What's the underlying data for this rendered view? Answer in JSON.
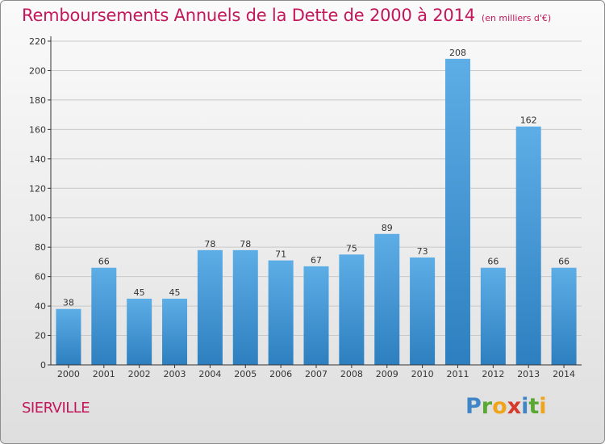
{
  "title": {
    "main": "Remboursements Annuels de la Dette de 2000 à 2014",
    "unit": "(en milliers d'€)"
  },
  "commune": "SIERVILLE",
  "logo": {
    "letters": [
      "P",
      "r",
      "o",
      "x",
      "i",
      "t",
      "i"
    ],
    "colors": [
      "#3f86c9",
      "#58a832",
      "#f0a419",
      "#d63a2a",
      "#3f86c9",
      "#58a832",
      "#f0a419"
    ]
  },
  "chart_data": {
    "type": "bar",
    "title": "Remboursements Annuels de la Dette de 2000 à 2014",
    "xlabel": "",
    "ylabel": "",
    "categories": [
      "2000",
      "2001",
      "2002",
      "2003",
      "2004",
      "2005",
      "2006",
      "2007",
      "2008",
      "2009",
      "2010",
      "2011",
      "2012",
      "2013",
      "2014"
    ],
    "values": [
      38,
      66,
      45,
      45,
      78,
      78,
      71,
      67,
      75,
      89,
      73,
      208,
      66,
      162,
      66
    ],
    "ylim": [
      0,
      220
    ],
    "yticks": [
      0,
      20,
      40,
      60,
      80,
      100,
      120,
      140,
      160,
      180,
      200,
      220
    ],
    "grid": true,
    "colors": {
      "bar_top": "#5dade6",
      "bar_bottom": "#2d7fbf",
      "grid": "#c8c8c8",
      "axis": "#333333",
      "text": "#333333"
    }
  }
}
